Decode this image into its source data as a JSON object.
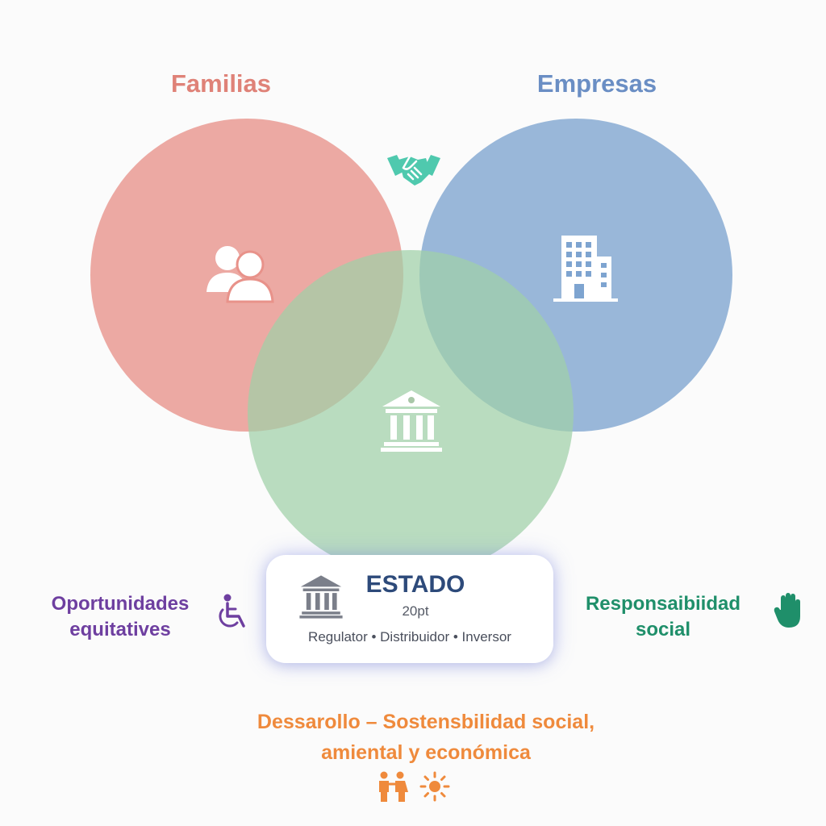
{
  "colors": {
    "familias": "#e8928a",
    "empresas": "#7ea4d0",
    "estado": "#9fd0a8",
    "familias_text": "#df8278",
    "empresas_text": "#6a8ec4",
    "estado_text": "#2d4a7a",
    "oportunidades_text": "#6e3fa0",
    "responsabilidad_text": "#1f8f6a",
    "desarrollo_text": "#ef8a3c",
    "handshake": "#4fc9ae"
  },
  "sets": {
    "familias": {
      "label": "Familias",
      "icon": "people-icon"
    },
    "empresas": {
      "label": "Empresas",
      "icon": "building-icon"
    },
    "estado": {
      "icon": "government-building-icon"
    }
  },
  "center_icon": "handshake-icon",
  "estado_card": {
    "title": "ESTADO",
    "subtitle": "20pt",
    "roles": "Regulator • Distribuidor • Inversor",
    "icon": "government-building-icon"
  },
  "oportunidades": {
    "line1": "Oportunidades",
    "line2": "equitatives",
    "icon": "wheelchair-icon"
  },
  "responsabilidad": {
    "line1": "Responsaibiidad",
    "line2": "social",
    "icon": "hand-icon"
  },
  "desarrollo": {
    "line1": "Dessarollo – Sostensbilidad social,",
    "line2": "amiental y económica",
    "icons": [
      "family-icon",
      "sun-icon"
    ]
  }
}
